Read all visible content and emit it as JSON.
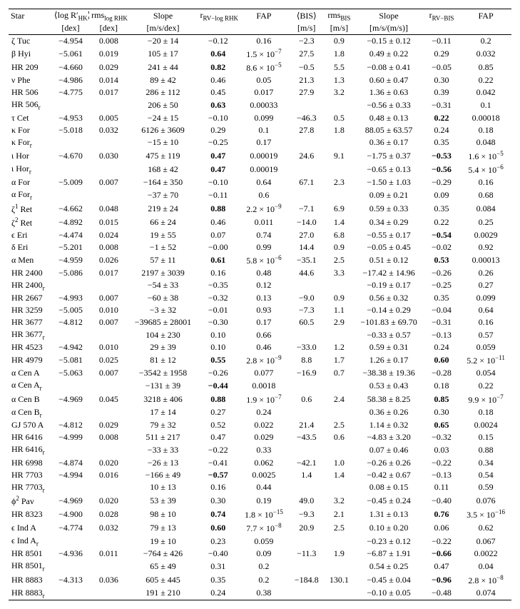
{
  "headers": {
    "row1": [
      "Star",
      "⟨log R′<sub>HK</sub>⟩",
      "rms<sub>log RHK</sub>",
      "Slope",
      "r<sub>RV−log RHK</sub>",
      "FAP",
      "⟨BIS⟩",
      "rms<sub>BIS</sub>",
      "Slope",
      "r<sub>RV−BIS</sub>",
      "FAP"
    ],
    "row2": [
      "",
      "[dex]",
      "[dex]",
      "[m/s/dex]",
      "",
      "",
      "[m/s]",
      "[m/s]",
      "[m/s/(m/s)]",
      "",
      ""
    ]
  },
  "rows": [
    {
      "star": "ζ Tuc",
      "logR": "−4.954",
      "rms1": "0.008",
      "slope1": "−20 ± 14",
      "r1": "−0.12",
      "fap1": "0.16",
      "bis": "−2.3",
      "rms2": "0.9",
      "slope2": "−0.15 ± 0.12",
      "r2": "−0.11",
      "fap2": "0.2"
    },
    {
      "star": "β Hyi",
      "logR": "−5.061",
      "rms1": "0.019",
      "slope1": "105 ± 17",
      "r1": "0.64",
      "r1b": true,
      "fap1": "1.5 × 10<sup>−7</sup>",
      "bis": "27.5",
      "rms2": "1.8",
      "slope2": "0.49 ± 0.22",
      "r2": "0.29",
      "fap2": "0.032"
    },
    {
      "star": "HR 209",
      "logR": "−4.660",
      "rms1": "0.029",
      "slope1": "241 ± 44",
      "r1": "0.82",
      "r1b": true,
      "fap1": "8.6 × 10<sup>−5</sup>",
      "bis": "−0.5",
      "rms2": "5.5",
      "slope2": "−0.08 ± 0.41",
      "r2": "−0.05",
      "fap2": "0.85"
    },
    {
      "star": "ν Phe",
      "logR": "−4.986",
      "rms1": "0.014",
      "slope1": "89 ± 42",
      "r1": "0.46",
      "fap1": "0.05",
      "bis": "21.3",
      "rms2": "1.3",
      "slope2": "0.60 ± 0.47",
      "r2": "0.30",
      "fap2": "0.22"
    },
    {
      "star": "HR 506",
      "logR": "−4.775",
      "rms1": "0.017",
      "slope1": "286 ± 112",
      "r1": "0.45",
      "fap1": "0.017",
      "bis": "27.9",
      "rms2": "3.2",
      "slope2": "1.36 ± 0.63",
      "r2": "0.39",
      "fap2": "0.042"
    },
    {
      "star": "HR 506<sub>r</sub>",
      "logR": "",
      "rms1": "",
      "slope1": "206 ± 50",
      "r1": "0.63",
      "r1b": true,
      "fap1": "0.00033",
      "bis": "",
      "rms2": "",
      "slope2": "−0.56 ± 0.33",
      "r2": "−0.31",
      "fap2": "0.1"
    },
    {
      "star": "τ Cet",
      "logR": "−4.953",
      "rms1": "0.005",
      "slope1": "−24 ± 15",
      "r1": "−0.10",
      "fap1": "0.099",
      "bis": "−46.3",
      "rms2": "0.5",
      "slope2": "0.48 ± 0.13",
      "r2": "0.22",
      "r2b": true,
      "fap2": "0.00018"
    },
    {
      "star": "κ For",
      "logR": "−5.018",
      "rms1": "0.032",
      "slope1": "6126 ± 3609",
      "r1": "0.29",
      "fap1": "0.1",
      "bis": "27.8",
      "rms2": "1.8",
      "slope2": "88.05 ± 63.57",
      "r2": "0.24",
      "fap2": "0.18"
    },
    {
      "star": "κ For<sub>r</sub>",
      "logR": "",
      "rms1": "",
      "slope1": "−15 ± 10",
      "r1": "−0.25",
      "fap1": "0.17",
      "bis": "",
      "rms2": "",
      "slope2": "0.36 ± 0.17",
      "r2": "0.35",
      "fap2": "0.048"
    },
    {
      "star": "ι Hor",
      "logR": "−4.670",
      "rms1": "0.030",
      "slope1": "475 ± 119",
      "r1": "0.47",
      "r1b": true,
      "fap1": "0.00019",
      "bis": "24.6",
      "rms2": "9.1",
      "slope2": "−1.75 ± 0.37",
      "r2": "−0.53",
      "r2b": true,
      "fap2": "1.6 × 10<sup>−5</sup>"
    },
    {
      "star": "ι Hor<sub>r</sub>",
      "logR": "",
      "rms1": "",
      "slope1": "168 ± 42",
      "r1": "0.47",
      "r1b": true,
      "fap1": "0.00019",
      "bis": "",
      "rms2": "",
      "slope2": "−0.65 ± 0.13",
      "r2": "−0.56",
      "r2b": true,
      "fap2": "5.4 × 10<sup>−6</sup>"
    },
    {
      "star": "α For",
      "logR": "−5.009",
      "rms1": "0.007",
      "slope1": "−164 ± 350",
      "r1": "−0.10",
      "fap1": "0.64",
      "bis": "67.1",
      "rms2": "2.3",
      "slope2": "−1.50 ± 1.03",
      "r2": "−0.29",
      "fap2": "0.16"
    },
    {
      "star": "α For<sub>r</sub>",
      "logR": "",
      "rms1": "",
      "slope1": "−37 ± 70",
      "r1": "−0.11",
      "fap1": "0.6",
      "bis": "",
      "rms2": "",
      "slope2": "0.09 ± 0.21",
      "r2": "0.09",
      "fap2": "0.68"
    },
    {
      "star": "ζ<sup>1</sup> Ret",
      "logR": "−4.662",
      "rms1": "0.048",
      "slope1": "219 ± 24",
      "r1": "0.88",
      "r1b": true,
      "fap1": "2.2 × 10<sup>−9</sup>",
      "bis": "−7.1",
      "rms2": "6.9",
      "slope2": "0.59 ± 0.33",
      "r2": "0.35",
      "fap2": "0.084"
    },
    {
      "star": "ζ<sup>2</sup> Ret",
      "logR": "−4.892",
      "rms1": "0.015",
      "slope1": "66 ± 24",
      "r1": "0.46",
      "fap1": "0.011",
      "bis": "−14.0",
      "rms2": "1.4",
      "slope2": "0.34 ± 0.29",
      "r2": "0.22",
      "fap2": "0.25"
    },
    {
      "star": "ϵ Eri",
      "logR": "−4.474",
      "rms1": "0.024",
      "slope1": "19 ± 55",
      "r1": "0.07",
      "fap1": "0.74",
      "bis": "27.0",
      "rms2": "6.8",
      "slope2": "−0.55 ± 0.17",
      "r2": "−0.54",
      "r2b": true,
      "fap2": "0.0029"
    },
    {
      "star": "δ Eri",
      "logR": "−5.201",
      "rms1": "0.008",
      "slope1": "−1 ± 52",
      "r1": "−0.00",
      "fap1": "0.99",
      "bis": "14.4",
      "rms2": "0.9",
      "slope2": "−0.05 ± 0.45",
      "r2": "−0.02",
      "fap2": "0.92"
    },
    {
      "star": "α Men",
      "logR": "−4.959",
      "rms1": "0.026",
      "slope1": "57 ± 11",
      "r1": "0.61",
      "r1b": true,
      "fap1": "5.8 × 10<sup>−6</sup>",
      "bis": "−35.1",
      "rms2": "2.5",
      "slope2": "0.51 ± 0.12",
      "r2": "0.53",
      "r2b": true,
      "fap2": "0.00013"
    },
    {
      "star": "HR 2400",
      "logR": "−5.086",
      "rms1": "0.017",
      "slope1": "2197 ± 3039",
      "r1": "0.16",
      "fap1": "0.48",
      "bis": "44.6",
      "rms2": "3.3",
      "slope2": "−17.42 ± 14.96",
      "r2": "−0.26",
      "fap2": "0.26"
    },
    {
      "star": "HR 2400<sub>r</sub>",
      "logR": "",
      "rms1": "",
      "slope1": "−54 ± 33",
      "r1": "−0.35",
      "fap1": "0.12",
      "bis": "",
      "rms2": "",
      "slope2": "−0.19 ± 0.17",
      "r2": "−0.25",
      "fap2": "0.27"
    },
    {
      "star": "HR 2667",
      "logR": "−4.993",
      "rms1": "0.007",
      "slope1": "−60 ± 38",
      "r1": "−0.32",
      "fap1": "0.13",
      "bis": "−9.0",
      "rms2": "0.9",
      "slope2": "0.56 ± 0.32",
      "r2": "0.35",
      "fap2": "0.099"
    },
    {
      "star": "HR 3259",
      "logR": "−5.005",
      "rms1": "0.010",
      "slope1": "−3 ± 32",
      "r1": "−0.01",
      "fap1": "0.93",
      "bis": "−7.3",
      "rms2": "1.1",
      "slope2": "−0.14 ± 0.29",
      "r2": "−0.04",
      "fap2": "0.64"
    },
    {
      "star": "HR 3677",
      "logR": "−4.812",
      "rms1": "0.007",
      "slope1": "−39685 ± 28001",
      "r1": "−0.30",
      "fap1": "0.17",
      "bis": "60.5",
      "rms2": "2.9",
      "slope2": "−101.83 ± 69.70",
      "r2": "−0.31",
      "fap2": "0.16"
    },
    {
      "star": "HR 3677<sub>r</sub>",
      "logR": "",
      "rms1": "",
      "slope1": "104 ± 230",
      "r1": "0.10",
      "fap1": "0.66",
      "bis": "",
      "rms2": "",
      "slope2": "−0.33 ± 0.57",
      "r2": "−0.13",
      "fap2": "0.57"
    },
    {
      "star": "HR 4523",
      "logR": "−4.942",
      "rms1": "0.010",
      "slope1": "29 ± 39",
      "r1": "0.10",
      "fap1": "0.46",
      "bis": "−33.0",
      "rms2": "1.2",
      "slope2": "0.59 ± 0.31",
      "r2": "0.24",
      "fap2": "0.059"
    },
    {
      "star": "HR 4979",
      "logR": "−5.081",
      "rms1": "0.025",
      "slope1": "81 ± 12",
      "r1": "0.55",
      "r1b": true,
      "fap1": "2.8 × 10<sup>−9</sup>",
      "bis": "8.8",
      "rms2": "1.7",
      "slope2": "1.26 ± 0.17",
      "r2": "0.60",
      "r2b": true,
      "fap2": "5.2 × 10<sup>−11</sup>"
    },
    {
      "star": "α Cen A",
      "logR": "−5.063",
      "rms1": "0.007",
      "slope1": "−3542 ± 1958",
      "r1": "−0.26",
      "fap1": "0.077",
      "bis": "−16.9",
      "rms2": "0.7",
      "slope2": "−38.38 ± 19.36",
      "r2": "−0.28",
      "fap2": "0.054"
    },
    {
      "star": "α Cen A<sub>r</sub>",
      "logR": "",
      "rms1": "",
      "slope1": "−131 ± 39",
      "r1": "−0.44",
      "r1b": true,
      "fap1": "0.0018",
      "bis": "",
      "rms2": "",
      "slope2": "0.53 ± 0.43",
      "r2": "0.18",
      "fap2": "0.22"
    },
    {
      "star": "α Cen B",
      "logR": "−4.969",
      "rms1": "0.045",
      "slope1": "3218 ± 406",
      "r1": "0.88",
      "r1b": true,
      "fap1": "1.9 × 10<sup>−7</sup>",
      "bis": "0.6",
      "rms2": "2.4",
      "slope2": "58.38 ± 8.25",
      "r2": "0.85",
      "r2b": true,
      "fap2": "9.9 × 10<sup>−7</sup>"
    },
    {
      "star": "α Cen B<sub>r</sub>",
      "logR": "",
      "rms1": "",
      "slope1": "17 ± 14",
      "r1": "0.27",
      "fap1": "0.24",
      "bis": "",
      "rms2": "",
      "slope2": "0.36 ± 0.26",
      "r2": "0.30",
      "fap2": "0.18"
    },
    {
      "star": "GJ 570 A",
      "logR": "−4.812",
      "rms1": "0.029",
      "slope1": "79 ± 32",
      "r1": "0.52",
      "fap1": "0.022",
      "bis": "21.4",
      "rms2": "2.5",
      "slope2": "1.14 ± 0.32",
      "r2": "0.65",
      "r2b": true,
      "fap2": "0.0024"
    },
    {
      "star": "HR 6416",
      "logR": "−4.999",
      "rms1": "0.008",
      "slope1": "511 ± 217",
      "r1": "0.47",
      "fap1": "0.029",
      "bis": "−43.5",
      "rms2": "0.6",
      "slope2": "−4.83 ± 3.20",
      "r2": "−0.32",
      "fap2": "0.15"
    },
    {
      "star": "HR 6416<sub>r</sub>",
      "logR": "",
      "rms1": "",
      "slope1": "−33 ± 33",
      "r1": "−0.22",
      "fap1": "0.33",
      "bis": "",
      "rms2": "",
      "slope2": "0.07 ± 0.46",
      "r2": "0.03",
      "fap2": "0.88"
    },
    {
      "star": "HR 6998",
      "logR": "−4.874",
      "rms1": "0.020",
      "slope1": "−26 ± 13",
      "r1": "−0.41",
      "fap1": "0.062",
      "bis": "−42.1",
      "rms2": "1.0",
      "slope2": "−0.26 ± 0.26",
      "r2": "−0.22",
      "fap2": "0.34"
    },
    {
      "star": "HR 7703",
      "logR": "−4.994",
      "rms1": "0.016",
      "slope1": "−166 ± 49",
      "r1": "−0.57",
      "r1b": true,
      "fap1": "0.0025",
      "bis": "1.4",
      "rms2": "1.4",
      "slope2": "−0.42 ± 0.67",
      "r2": "−0.13",
      "fap2": "0.54"
    },
    {
      "star": "HR 7703<sub>r</sub>",
      "logR": "",
      "rms1": "",
      "slope1": "10 ± 13",
      "r1": "0.16",
      "fap1": "0.44",
      "bis": "",
      "rms2": "",
      "slope2": "0.08 ± 0.15",
      "r2": "0.11",
      "fap2": "0.59"
    },
    {
      "star": "ϕ<sup>2</sup> Pav",
      "logR": "−4.969",
      "rms1": "0.020",
      "slope1": "53 ± 39",
      "r1": "0.30",
      "fap1": "0.19",
      "bis": "49.0",
      "rms2": "3.2",
      "slope2": "−0.45 ± 0.24",
      "r2": "−0.40",
      "fap2": "0.076"
    },
    {
      "star": "HR 8323",
      "logR": "−4.900",
      "rms1": "0.028",
      "slope1": "98 ± 10",
      "r1": "0.74",
      "r1b": true,
      "fap1": "1.8 × 10<sup>−15</sup>",
      "bis": "−9.3",
      "rms2": "2.1",
      "slope2": "1.31 ± 0.13",
      "r2": "0.76",
      "r2b": true,
      "fap2": "3.5 × 10<sup>−16</sup>"
    },
    {
      "star": "ϵ Ind A",
      "logR": "−4.774",
      "rms1": "0.032",
      "slope1": "79 ± 13",
      "r1": "0.60",
      "r1b": true,
      "fap1": "7.7 × 10<sup>−8</sup>",
      "bis": "20.9",
      "rms2": "2.5",
      "slope2": "0.10 ± 0.20",
      "r2": "0.06",
      "fap2": "0.62"
    },
    {
      "star": "ϵ Ind A<sub>r</sub>",
      "logR": "",
      "rms1": "",
      "slope1": "19 ± 10",
      "r1": "0.23",
      "fap1": "0.059",
      "bis": "",
      "rms2": "",
      "slope2": "−0.23 ± 0.12",
      "r2": "−0.22",
      "fap2": "0.067"
    },
    {
      "star": "HR 8501",
      "logR": "−4.936",
      "rms1": "0.011",
      "slope1": "−764 ± 426",
      "r1": "−0.40",
      "fap1": "0.09",
      "bis": "−11.3",
      "rms2": "1.9",
      "slope2": "−6.87 ± 1.91",
      "r2": "−0.66",
      "r2b": true,
      "fap2": "0.0022"
    },
    {
      "star": "HR 8501<sub>r</sub>",
      "logR": "",
      "rms1": "",
      "slope1": "65 ± 49",
      "r1": "0.31",
      "fap1": "0.2",
      "bis": "",
      "rms2": "",
      "slope2": "0.54 ± 0.25",
      "r2": "0.47",
      "fap2": "0.04"
    },
    {
      "star": "HR 8883",
      "logR": "−4.313",
      "rms1": "0.036",
      "slope1": "605 ± 445",
      "r1": "0.35",
      "fap1": "0.2",
      "bis": "−184.8",
      "rms2": "130.1",
      "slope2": "−0.45 ± 0.04",
      "r2": "−0.96",
      "r2b": true,
      "fap2": "2.8 × 10<sup>−8</sup>"
    },
    {
      "star": "HR 8883<sub>r</sub>",
      "logR": "",
      "rms1": "",
      "slope1": "191 ± 210",
      "r1": "0.24",
      "fap1": "0.38",
      "bis": "",
      "rms2": "",
      "slope2": "−0.10 ± 0.05",
      "r2": "−0.48",
      "fap2": "0.074"
    }
  ]
}
